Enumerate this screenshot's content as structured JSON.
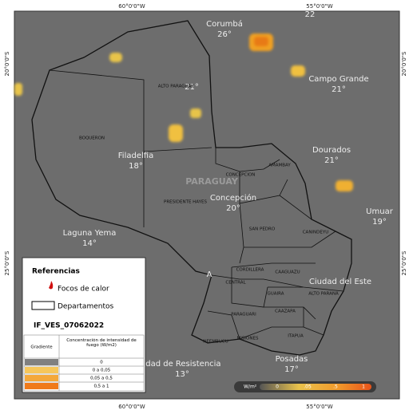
{
  "coordinates": {
    "top": [
      "60°0'0\"W",
      "55°0'0\"W"
    ],
    "bottom": [
      "60°0'0\"W",
      "55°0'0\"W"
    ],
    "left": [
      "20°0'0\"S",
      "25°0'0\"S"
    ],
    "right": [
      "20°0'0\"S",
      "25°0'0\"S"
    ]
  },
  "country": "PARAGUAY",
  "cities": [
    {
      "name": "Corumbá",
      "temp": "26°"
    },
    {
      "temp": "22"
    },
    {
      "name": "Campo Grande",
      "temp": "21°"
    },
    {
      "temp": "21°"
    },
    {
      "name": "Filadelfia",
      "temp": "18°"
    },
    {
      "name": "Dourados",
      "temp": "21°"
    },
    {
      "name": "Concepción",
      "temp": "20°"
    },
    {
      "name": "Umuar",
      "temp": "19°"
    },
    {
      "name": "Laguna Yema",
      "temp": "14°"
    },
    {
      "name": "A"
    },
    {
      "name": "Ciudad del Este"
    },
    {
      "name": "idad de Resistencia",
      "temp": "13°"
    },
    {
      "name": "Posadas",
      "temp": "17°"
    }
  ],
  "departments": [
    "ALTO PARAGUAY",
    "BOQUERON",
    "PRESIDENTE HAYES",
    "CONCEPCION",
    "AMAMBAY",
    "SAN PEDRO",
    "CANINDEYU",
    "CORDILLERA",
    "CENTRAL",
    "CAAGUAZU",
    "GUAIRA",
    "ALTO PARANA",
    "CAAZAPA",
    "PARAGUARI",
    "MISIONES",
    "NEEMBUCU",
    "ITAPUA"
  ],
  "legend": {
    "title": "Referencias",
    "items": [
      "Focos de calor",
      "Departamentos"
    ],
    "layer": "IF_VES_07062022",
    "table": {
      "headers": [
        "Gradiente",
        "Concentración de intensidad de fuego (W/m2)"
      ],
      "rows": [
        "0",
        "0 a 0,05",
        "0,05 a 0,5",
        "0,5 a 1"
      ]
    }
  },
  "colorbar": {
    "unit": "W/m²",
    "labels": [
      "0",
      ".05",
      ".5",
      "1"
    ]
  }
}
